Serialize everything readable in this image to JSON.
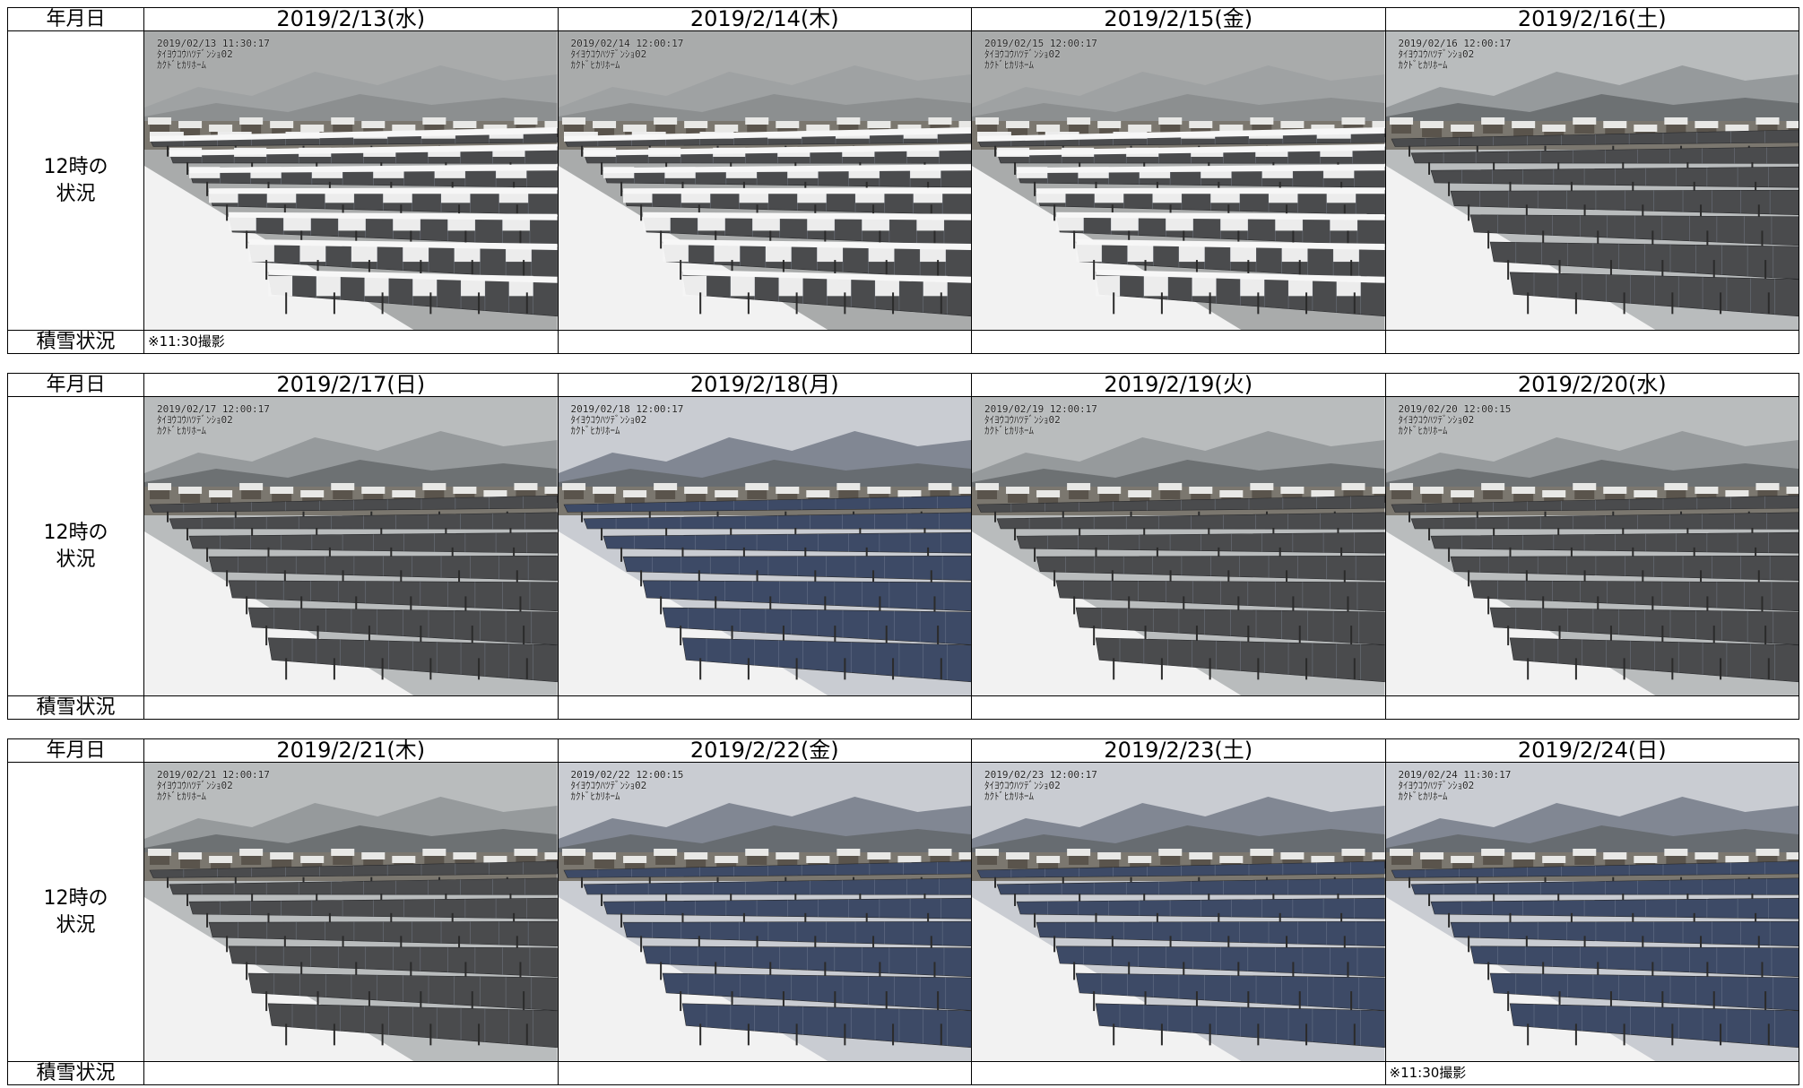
{
  "labels": {
    "date_header": "年月日",
    "noon_status_line1": "12時の",
    "noon_status_line2": "状況",
    "snow_status": "積雪状況"
  },
  "blocks": [
    {
      "days": [
        {
          "date": "2019/2/13(水)",
          "stamp": [
            "2019/02/13 11:30:17",
            "ﾀｲﾖｳｺｳﾊﾂﾃﾞﾝｼｮ02",
            "ｶｸﾄﾞﾋｶﾘﾎｰﾑ"
          ],
          "note": "※11:30撮影",
          "snow": "heavy"
        },
        {
          "date": "2019/2/14(木)",
          "stamp": [
            "2019/02/14 12:00:17",
            "ﾀｲﾖｳｺｳﾊﾂﾃﾞﾝｼｮ02",
            "ｶｸﾄﾞﾋｶﾘﾎｰﾑ"
          ],
          "note": "",
          "snow": "heavy"
        },
        {
          "date": "2019/2/15(金)",
          "stamp": [
            "2019/02/15 12:00:17",
            "ﾀｲﾖｳｺｳﾊﾂﾃﾞﾝｼｮ02",
            "ｶｸﾄﾞﾋｶﾘﾎｰﾑ"
          ],
          "note": "",
          "snow": "heavy"
        },
        {
          "date": "2019/2/16(土)",
          "stamp": [
            "2019/02/16 12:00:17",
            "ﾀｲﾖｳｺｳﾊﾂﾃﾞﾝｼｮ02",
            "ｶｸﾄﾞﾋｶﾘﾎｰﾑ"
          ],
          "note": "",
          "snow": "clear"
        }
      ]
    },
    {
      "days": [
        {
          "date": "2019/2/17(日)",
          "stamp": [
            "2019/02/17 12:00:17",
            "ﾀｲﾖｳｺｳﾊﾂﾃﾞﾝｼｮ02",
            "ｶｸﾄﾞﾋｶﾘﾎｰﾑ"
          ],
          "note": "",
          "snow": "clear"
        },
        {
          "date": "2019/2/18(月)",
          "stamp": [
            "2019/02/18 12:00:17",
            "ﾀｲﾖｳｺｳﾊﾂﾃﾞﾝｼｮ02",
            "ｶｸﾄﾞﾋｶﾘﾎｰﾑ"
          ],
          "note": "",
          "snow": "sunny"
        },
        {
          "date": "2019/2/19(火)",
          "stamp": [
            "2019/02/19 12:00:17",
            "ﾀｲﾖｳｺｳﾊﾂﾃﾞﾝｼｮ02",
            "ｶｸﾄﾞﾋｶﾘﾎｰﾑ"
          ],
          "note": "",
          "snow": "clear"
        },
        {
          "date": "2019/2/20(水)",
          "stamp": [
            "2019/02/20 12:00:15",
            "ﾀｲﾖｳｺｳﾊﾂﾃﾞﾝｼｮ02",
            "ｶｸﾄﾞﾋｶﾘﾎｰﾑ"
          ],
          "note": "",
          "snow": "clear"
        }
      ]
    },
    {
      "days": [
        {
          "date": "2019/2/21(木)",
          "stamp": [
            "2019/02/21 12:00:17",
            "ﾀｲﾖｳｺｳﾊﾂﾃﾞﾝｼｮ02",
            "ｶｸﾄﾞﾋｶﾘﾎｰﾑ"
          ],
          "note": "",
          "snow": "clear"
        },
        {
          "date": "2019/2/22(金)",
          "stamp": [
            "2019/02/22 12:00:15",
            "ﾀｲﾖｳｺｳﾊﾂﾃﾞﾝｼｮ02",
            "ｶｸﾄﾞﾋｶﾘﾎｰﾑ"
          ],
          "note": "",
          "snow": "sunny"
        },
        {
          "date": "2019/2/23(土)",
          "stamp": [
            "2019/02/23 12:00:17",
            "ﾀｲﾖｳｺｳﾊﾂﾃﾞﾝｼｮ02",
            "ｶｸﾄﾞﾋｶﾘﾎｰﾑ"
          ],
          "note": "",
          "snow": "sunny"
        },
        {
          "date": "2019/2/24(日)",
          "stamp": [
            "2019/02/24 11:30:17",
            "ﾀｲﾖｳｺｳﾊﾂﾃﾞﾝｼｮ02",
            "ｶｸﾄﾞﾋｶﾘﾎｰﾑ"
          ],
          "note": "※11:30撮影",
          "snow": "sunny"
        }
      ]
    }
  ]
}
